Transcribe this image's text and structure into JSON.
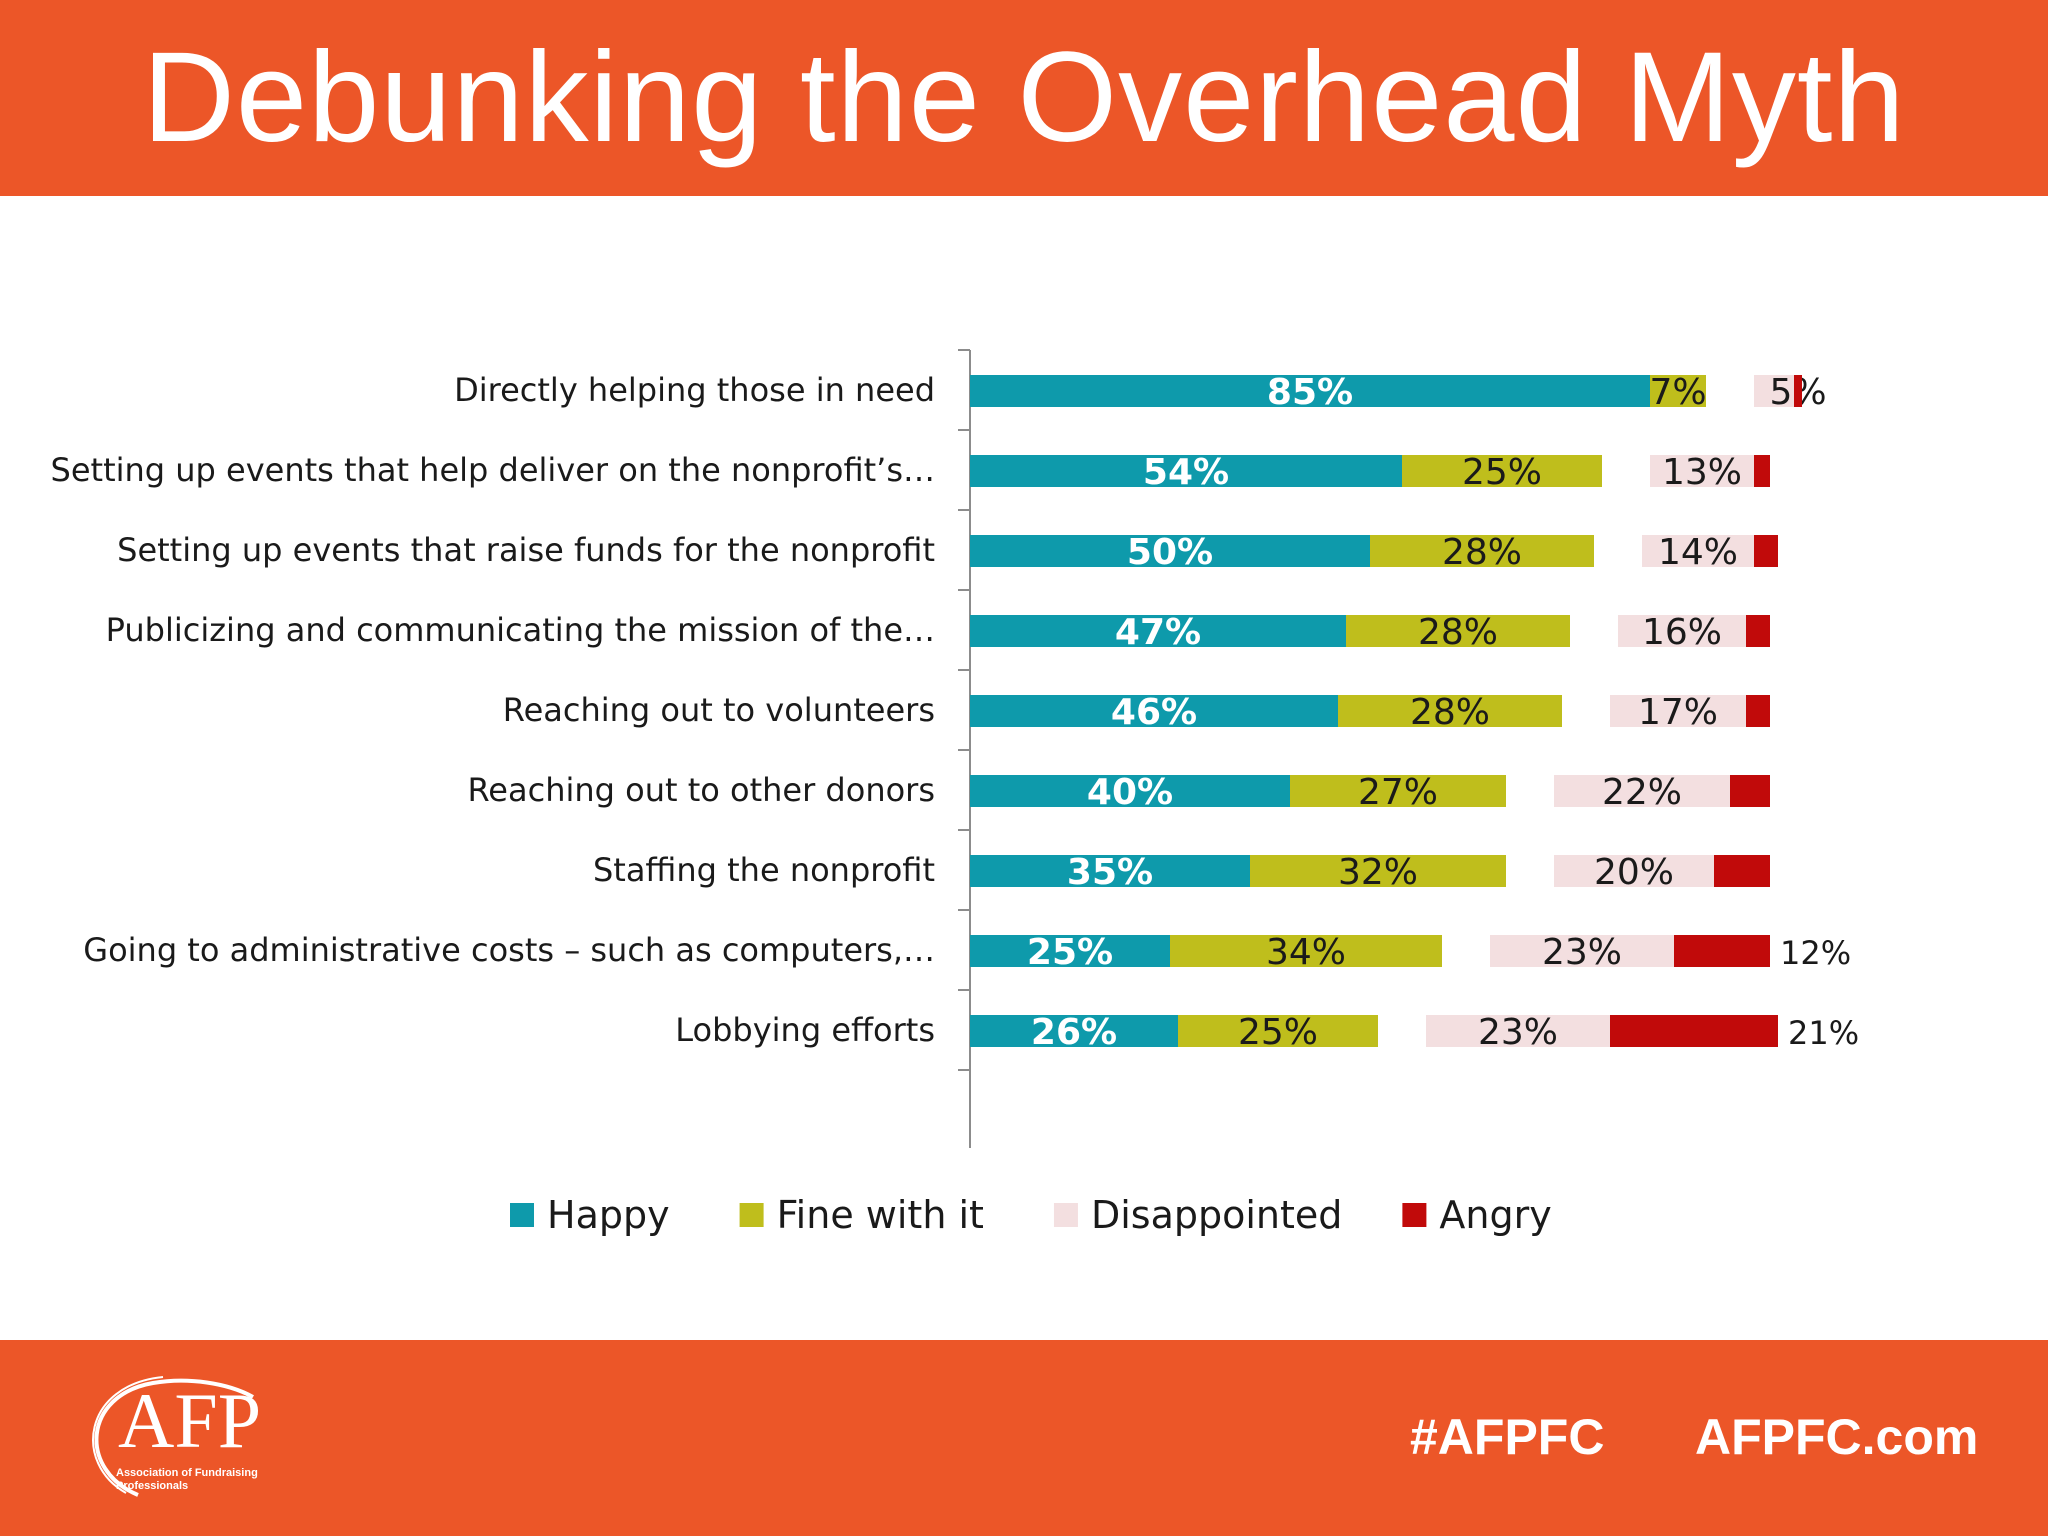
{
  "header": {
    "title": "Debunking the Overhead Myth"
  },
  "footer": {
    "logo_text": "AFP",
    "logo_subtitle": "Association of Fundraising Professionals",
    "hashtag": "#AFPFC",
    "website": "AFPFC.com"
  },
  "colors": {
    "brand_orange": "#ec5628",
    "happy": "#0e9aab",
    "fine": "#bfbe1c",
    "disappointed": "#f3dfe0",
    "angry": "#c10a0a"
  },
  "chart_data": {
    "type": "bar",
    "orientation": "horizontal",
    "stacked": true,
    "legend_position": "bottom",
    "grid": false,
    "categories": [
      "Directly helping those in need",
      "Setting up events that help deliver on the nonprofit’s…",
      "Setting up events that raise funds for the nonprofit",
      "Publicizing and communicating the mission of the…",
      "Reaching out to volunteers",
      "Reaching out to other donors",
      "Staffing the nonprofit",
      "Going to administrative costs – such as computers,…",
      "Lobbying efforts"
    ],
    "series": [
      {
        "name": "Happy",
        "values": [
          85,
          54,
          50,
          47,
          46,
          40,
          35,
          25,
          26
        ],
        "labels": [
          "85%",
          "54%",
          "50%",
          "47%",
          "46%",
          "40%",
          "35%",
          "25%",
          "26%"
        ]
      },
      {
        "name": "Fine with it",
        "values": [
          7,
          25,
          28,
          28,
          28,
          27,
          32,
          34,
          25
        ],
        "labels": [
          "7%",
          "25%",
          "28%",
          "28%",
          "28%",
          "27%",
          "32%",
          "34%",
          "25%"
        ]
      },
      {
        "name": "Disappointed",
        "values": [
          5,
          13,
          14,
          16,
          17,
          22,
          20,
          23,
          23
        ],
        "labels": [
          "5%",
          "13%",
          "14%",
          "16%",
          "17%",
          "22%",
          "20%",
          "23%",
          "23%"
        ]
      },
      {
        "name": "Angry",
        "values": [
          1,
          2,
          3,
          3,
          3,
          5,
          7,
          12,
          21
        ],
        "labels": [
          "",
          "",
          "",
          "",
          "",
          "",
          "",
          "12%",
          "21%"
        ]
      }
    ]
  }
}
